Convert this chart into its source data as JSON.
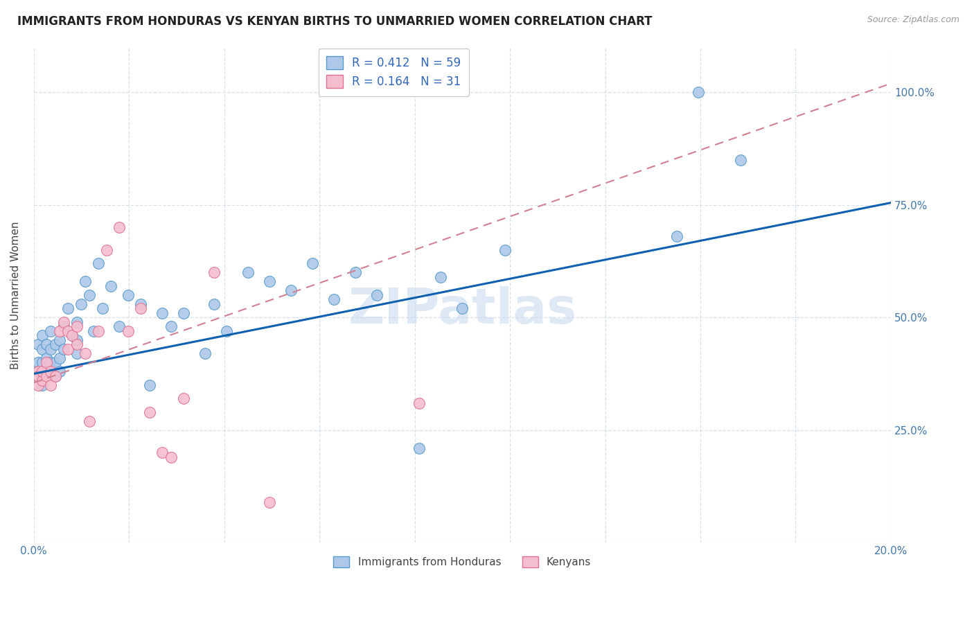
{
  "title": "IMMIGRANTS FROM HONDURAS VS KENYAN BIRTHS TO UNMARRIED WOMEN CORRELATION CHART",
  "source": "Source: ZipAtlas.com",
  "ylabel": "Births to Unmarried Women",
  "legend_blue_r": "R = 0.412",
  "legend_blue_n": "N = 59",
  "legend_pink_r": "R = 0.164",
  "legend_pink_n": "N = 31",
  "legend_bottom_blue": "Immigrants from Honduras",
  "legend_bottom_pink": "Kenyans",
  "blue_color": "#adc8e8",
  "pink_color": "#f5bece",
  "blue_edge_color": "#5599cc",
  "pink_edge_color": "#e07090",
  "blue_line_color": "#1060b0",
  "pink_line_color": "#d08090",
  "grid_color": "#d8e0ee",
  "watermark": "ZIPatlas",
  "blue_line_x0": 0.0,
  "blue_line_y0": 0.375,
  "blue_line_x1": 0.2,
  "blue_line_y1": 0.755,
  "pink_line_x0": 0.0,
  "pink_line_y0": 0.355,
  "pink_line_x1": 0.2,
  "pink_line_y1": 1.02,
  "blue_scatter_x": [
    0.001,
    0.001,
    0.001,
    0.002,
    0.002,
    0.002,
    0.002,
    0.002,
    0.003,
    0.003,
    0.003,
    0.003,
    0.004,
    0.004,
    0.004,
    0.005,
    0.005,
    0.005,
    0.006,
    0.006,
    0.006,
    0.007,
    0.007,
    0.008,
    0.009,
    0.01,
    0.01,
    0.01,
    0.011,
    0.012,
    0.013,
    0.014,
    0.015,
    0.016,
    0.018,
    0.02,
    0.022,
    0.025,
    0.027,
    0.03,
    0.032,
    0.035,
    0.04,
    0.042,
    0.045,
    0.05,
    0.055,
    0.06,
    0.065,
    0.07,
    0.075,
    0.08,
    0.09,
    0.095,
    0.1,
    0.11,
    0.15,
    0.155,
    0.165
  ],
  "blue_scatter_y": [
    0.4,
    0.44,
    0.38,
    0.36,
    0.4,
    0.43,
    0.46,
    0.35,
    0.38,
    0.41,
    0.44,
    0.38,
    0.4,
    0.43,
    0.47,
    0.37,
    0.4,
    0.44,
    0.38,
    0.41,
    0.45,
    0.43,
    0.48,
    0.52,
    0.46,
    0.42,
    0.45,
    0.49,
    0.53,
    0.58,
    0.55,
    0.47,
    0.62,
    0.52,
    0.57,
    0.48,
    0.55,
    0.53,
    0.35,
    0.51,
    0.48,
    0.51,
    0.42,
    0.53,
    0.47,
    0.6,
    0.58,
    0.56,
    0.62,
    0.54,
    0.6,
    0.55,
    0.21,
    0.59,
    0.52,
    0.65,
    0.68,
    1.0,
    0.85
  ],
  "pink_scatter_x": [
    0.001,
    0.001,
    0.001,
    0.002,
    0.002,
    0.003,
    0.003,
    0.004,
    0.004,
    0.005,
    0.006,
    0.007,
    0.008,
    0.008,
    0.009,
    0.01,
    0.01,
    0.012,
    0.013,
    0.015,
    0.017,
    0.02,
    0.022,
    0.025,
    0.027,
    0.03,
    0.032,
    0.035,
    0.042,
    0.055,
    0.09
  ],
  "pink_scatter_y": [
    0.38,
    0.35,
    0.37,
    0.36,
    0.38,
    0.37,
    0.4,
    0.38,
    0.35,
    0.37,
    0.47,
    0.49,
    0.47,
    0.43,
    0.46,
    0.44,
    0.48,
    0.42,
    0.27,
    0.47,
    0.65,
    0.7,
    0.47,
    0.52,
    0.29,
    0.2,
    0.19,
    0.32,
    0.6,
    0.09,
    0.31
  ],
  "xlim": [
    0.0,
    0.2
  ],
  "ylim": [
    0.0,
    1.1
  ],
  "xticks": [
    0.0,
    0.022222,
    0.044444,
    0.066667,
    0.088889,
    0.111111,
    0.133333,
    0.155556,
    0.177778,
    0.2
  ],
  "yticks": [
    0.0,
    0.25,
    0.5,
    0.75,
    1.0
  ]
}
